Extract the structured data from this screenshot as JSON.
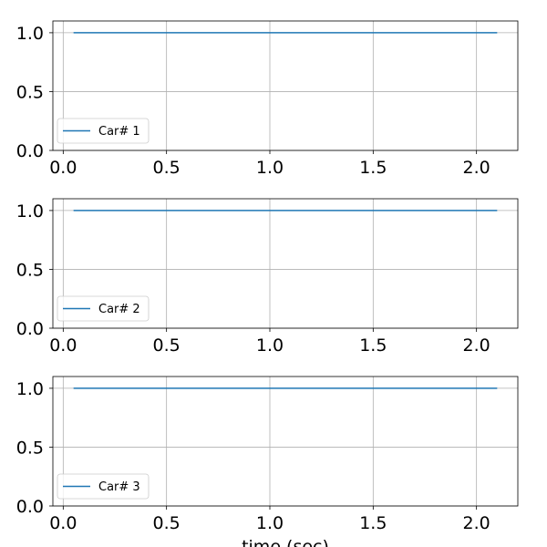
{
  "chart_data": [
    {
      "type": "line",
      "xlim": [
        -0.05,
        2.2
      ],
      "ylim": [
        0,
        1.1
      ],
      "xticks": [
        0.0,
        0.5,
        1.0,
        1.5,
        2.0
      ],
      "xtick_labels": [
        "0.0",
        "0.5",
        "1.0",
        "1.5",
        "2.0"
      ],
      "yticks": [
        0.0,
        0.5,
        1.0
      ],
      "ytick_labels": [
        "0.0",
        "0.5",
        "1.0"
      ],
      "grid": true,
      "legend_position": "lower-left",
      "xlabel": "",
      "series": [
        {
          "name": "Car# 1",
          "color": "#1f77b4",
          "x": [
            0.05,
            2.1
          ],
          "y": [
            1.0,
            1.0
          ]
        }
      ]
    },
    {
      "type": "line",
      "xlim": [
        -0.05,
        2.2
      ],
      "ylim": [
        0,
        1.1
      ],
      "xticks": [
        0.0,
        0.5,
        1.0,
        1.5,
        2.0
      ],
      "xtick_labels": [
        "0.0",
        "0.5",
        "1.0",
        "1.5",
        "2.0"
      ],
      "yticks": [
        0.0,
        0.5,
        1.0
      ],
      "ytick_labels": [
        "0.0",
        "0.5",
        "1.0"
      ],
      "grid": true,
      "legend_position": "lower-left",
      "xlabel": "",
      "series": [
        {
          "name": "Car# 2",
          "color": "#1f77b4",
          "x": [
            0.05,
            2.1
          ],
          "y": [
            1.0,
            1.0
          ]
        }
      ]
    },
    {
      "type": "line",
      "xlim": [
        -0.05,
        2.2
      ],
      "ylim": [
        0,
        1.1
      ],
      "xticks": [
        0.0,
        0.5,
        1.0,
        1.5,
        2.0
      ],
      "xtick_labels": [
        "0.0",
        "0.5",
        "1.0",
        "1.5",
        "2.0"
      ],
      "yticks": [
        0.0,
        0.5,
        1.0
      ],
      "ytick_labels": [
        "0.0",
        "0.5",
        "1.0"
      ],
      "grid": true,
      "legend_position": "lower-left",
      "xlabel": "time (sec)",
      "series": [
        {
          "name": "Car# 3",
          "color": "#1f77b4",
          "x": [
            0.05,
            2.1
          ],
          "y": [
            1.0,
            1.0
          ]
        }
      ]
    }
  ]
}
